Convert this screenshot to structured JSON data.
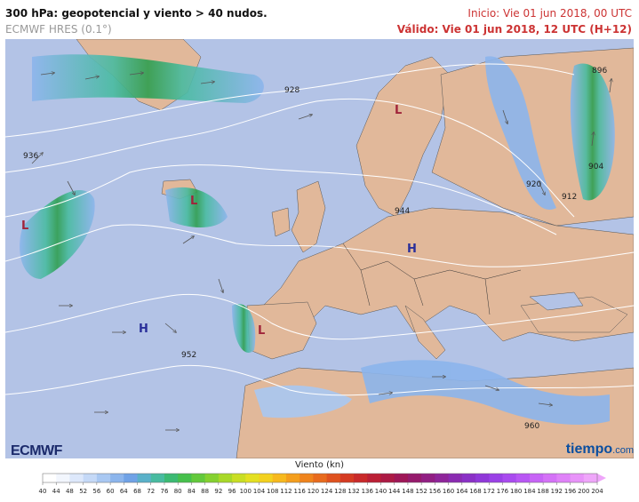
{
  "header": {
    "title": "300 hPa: geopotencial y viento > 40 nudos.",
    "model": "ECMWF HRES (0.1°)",
    "init": "Inicio: Vie 01 jun 2018, 00 UTC",
    "valid": "Válido: Vie 01 jun 2018, 12 UTC (H+12)"
  },
  "map": {
    "contours": [
      "896",
      "904",
      "912",
      "920",
      "928",
      "936",
      "944",
      "952",
      "960"
    ],
    "pressure_centers": [
      "L",
      "L",
      "L",
      "L",
      "H",
      "H"
    ],
    "colors": {
      "ocean": "#b3c3e6",
      "land": "#e1b89a",
      "jet_core": "#2e9e4f",
      "label": "#5a1f3a"
    }
  },
  "legend": {
    "title": "Viento (kn)",
    "ticks": [
      "40",
      "44",
      "48",
      "52",
      "56",
      "60",
      "64",
      "68",
      "72",
      "76",
      "80",
      "84",
      "88",
      "92",
      "96",
      "100",
      "104",
      "108",
      "112",
      "116",
      "120",
      "124",
      "128",
      "132",
      "136",
      "140",
      "144",
      "148",
      "152",
      "156",
      "160",
      "164",
      "168",
      "172",
      "176",
      "180",
      "184",
      "188",
      "192",
      "196",
      "200",
      "204"
    ],
    "colors": [
      "#ffffff",
      "#f2f6fd",
      "#dde8fb",
      "#c5d9f7",
      "#a9c8f2",
      "#8cb5ec",
      "#70a2e6",
      "#5ab1c9",
      "#48bba0",
      "#3cba73",
      "#46c04c",
      "#63c93c",
      "#85d130",
      "#a8d828",
      "#c9de24",
      "#e4e022",
      "#f3d11f",
      "#f7b91e",
      "#f49e1d",
      "#ef841d",
      "#e86b1e",
      "#df521f",
      "#d53b22",
      "#c92a2a",
      "#bb1f35",
      "#ac1a44",
      "#9e1757",
      "#951a6c",
      "#911f83",
      "#8e259a",
      "#8a2bb1",
      "#8a31c6",
      "#8f38d8",
      "#9a41e6",
      "#a94bef",
      "#b857f4",
      "#c764f6",
      "#d472f7",
      "#df82f8",
      "#e893f9",
      "#efa6fa"
    ]
  },
  "logos": {
    "ecmwf": "ECMWF",
    "tiempo": "tiempo",
    "tiempo_suffix": ".com"
  }
}
